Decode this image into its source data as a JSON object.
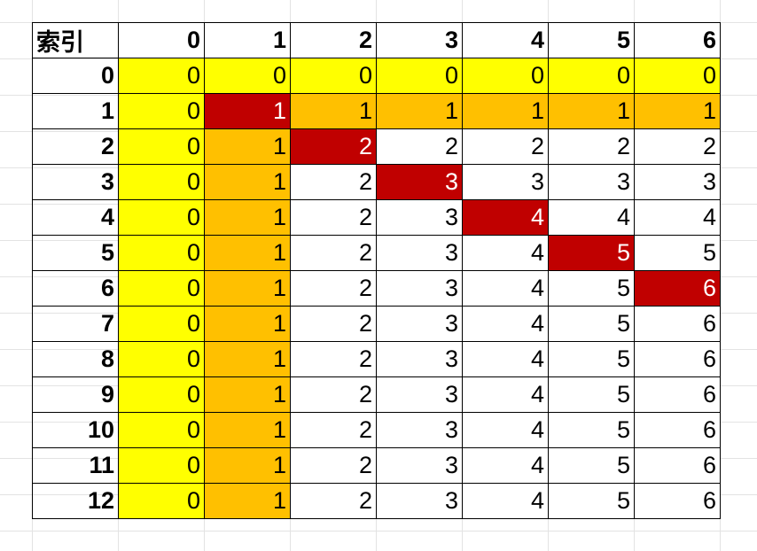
{
  "corner_label": "索引",
  "column_headers": [
    "0",
    "1",
    "2",
    "3",
    "4",
    "5",
    "6"
  ],
  "row_headers": [
    "0",
    "1",
    "2",
    "3",
    "4",
    "5",
    "6",
    "7",
    "8",
    "9",
    "10",
    "11",
    "12"
  ],
  "cells": [
    [
      "0",
      "0",
      "0",
      "0",
      "0",
      "0",
      "0"
    ],
    [
      "0",
      "1",
      "1",
      "1",
      "1",
      "1",
      "1"
    ],
    [
      "0",
      "1",
      "2",
      "2",
      "2",
      "2",
      "2"
    ],
    [
      "0",
      "1",
      "2",
      "3",
      "3",
      "3",
      "3"
    ],
    [
      "0",
      "1",
      "2",
      "3",
      "4",
      "4",
      "4"
    ],
    [
      "0",
      "1",
      "2",
      "3",
      "4",
      "5",
      "5"
    ],
    [
      "0",
      "1",
      "2",
      "3",
      "4",
      "5",
      "6"
    ],
    [
      "0",
      "1",
      "2",
      "3",
      "4",
      "5",
      "6"
    ],
    [
      "0",
      "1",
      "2",
      "3",
      "4",
      "5",
      "6"
    ],
    [
      "0",
      "1",
      "2",
      "3",
      "4",
      "5",
      "6"
    ],
    [
      "0",
      "1",
      "2",
      "3",
      "4",
      "5",
      "6"
    ],
    [
      "0",
      "1",
      "2",
      "3",
      "4",
      "5",
      "6"
    ],
    [
      "0",
      "1",
      "2",
      "3",
      "4",
      "5",
      "6"
    ]
  ],
  "colors": {
    "yellow": "#ffff00",
    "orange": "#ffc000",
    "red": "#c00000",
    "white": "#ffffff"
  }
}
